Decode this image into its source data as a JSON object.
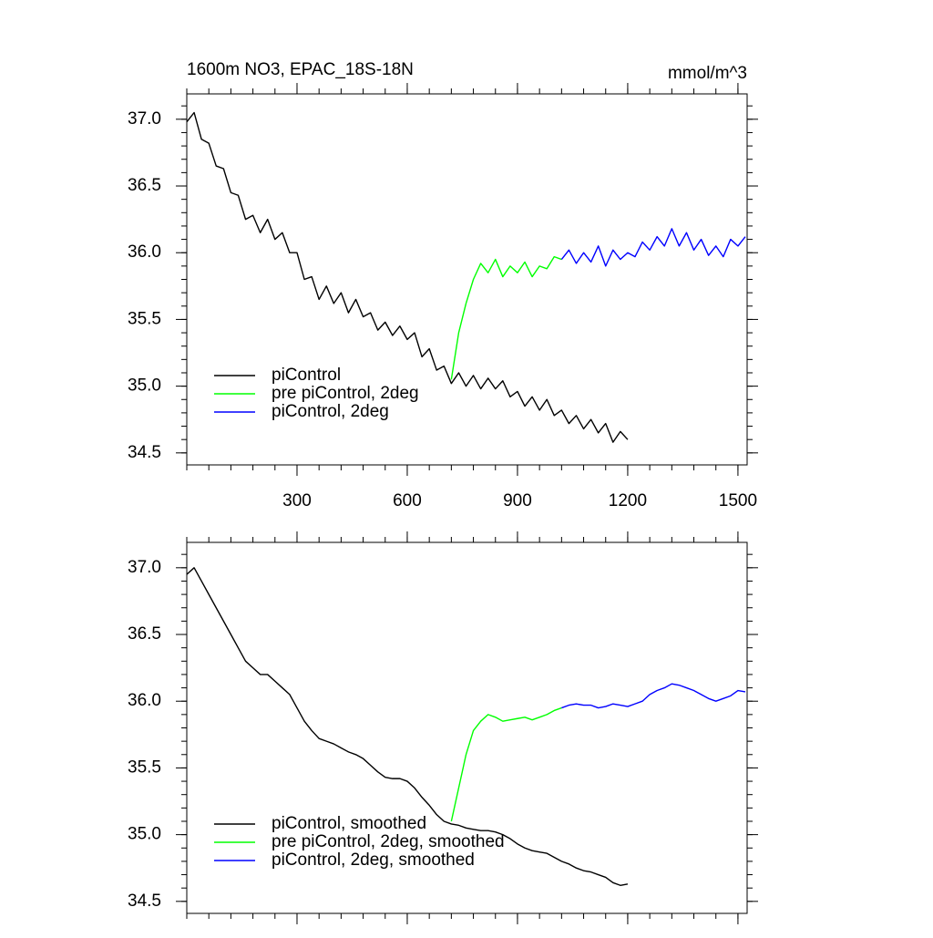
{
  "chart_data": [
    {
      "type": "line",
      "title": "1600m NO3, EPAC_18S-18N",
      "units_label": "mmol/m^3",
      "xlim": [
        0,
        1525
      ],
      "xticks": [
        300,
        600,
        900,
        1200,
        1500
      ],
      "ylim": [
        34.41,
        37.19
      ],
      "yticks": [
        {
          "value": 34.5,
          "label": "34.5"
        },
        {
          "value": 35,
          "label": "35.0"
        },
        {
          "value": 35.5,
          "label": "35.5"
        },
        {
          "value": 36,
          "label": "36.0"
        },
        {
          "value": 36.5,
          "label": "36.5"
        },
        {
          "value": 37,
          "label": "37.0"
        }
      ],
      "legend": "lower left",
      "series": [
        {
          "name": "piControl",
          "color": "#000000",
          "x": [
            0,
            20,
            40,
            60,
            80,
            100,
            120,
            140,
            160,
            180,
            200,
            220,
            240,
            260,
            280,
            300,
            320,
            340,
            360,
            380,
            400,
            420,
            440,
            460,
            480,
            500,
            520,
            540,
            560,
            580,
            600,
            620,
            640,
            660,
            680,
            700,
            720,
            740,
            760,
            780,
            800,
            820,
            840,
            860,
            880,
            900,
            920,
            940,
            960,
            980,
            1000,
            1020,
            1040,
            1060,
            1080,
            1100,
            1120,
            1140,
            1160,
            1180,
            1200
          ],
          "values": [
            36.98,
            37.05,
            36.85,
            36.82,
            36.65,
            36.63,
            36.45,
            36.43,
            36.25,
            36.28,
            36.15,
            36.25,
            36.1,
            36.15,
            36.0,
            36.0,
            35.8,
            35.82,
            35.65,
            35.75,
            35.62,
            35.7,
            35.55,
            35.65,
            35.52,
            35.55,
            35.42,
            35.48,
            35.38,
            35.45,
            35.35,
            35.4,
            35.22,
            35.28,
            35.12,
            35.15,
            35.02,
            35.1,
            35.0,
            35.08,
            34.98,
            35.06,
            34.98,
            35.04,
            34.92,
            34.96,
            34.85,
            34.92,
            34.82,
            34.9,
            34.78,
            34.82,
            34.72,
            34.78,
            34.68,
            34.75,
            34.65,
            34.72,
            34.58,
            34.66,
            34.6
          ]
        },
        {
          "name": "pre piControl, 2deg",
          "color": "#00ff00",
          "x": [
            720,
            740,
            760,
            780,
            800,
            820,
            840,
            860,
            880,
            900,
            920,
            940,
            960,
            980,
            1000,
            1020
          ],
          "values": [
            35.05,
            35.4,
            35.62,
            35.8,
            35.92,
            35.85,
            35.95,
            35.82,
            35.9,
            35.85,
            35.93,
            35.82,
            35.9,
            35.88,
            35.97,
            35.95
          ]
        },
        {
          "name": "piControl, 2deg",
          "color": "#0000ff",
          "x": [
            1020,
            1040,
            1060,
            1080,
            1100,
            1120,
            1140,
            1160,
            1180,
            1200,
            1220,
            1240,
            1260,
            1280,
            1300,
            1320,
            1340,
            1360,
            1380,
            1400,
            1420,
            1440,
            1460,
            1480,
            1500,
            1520
          ],
          "values": [
            35.95,
            36.02,
            35.92,
            36.0,
            35.93,
            36.05,
            35.9,
            36.02,
            35.95,
            36.0,
            35.97,
            36.08,
            36.02,
            36.12,
            36.05,
            36.18,
            36.05,
            36.15,
            36.02,
            36.1,
            35.98,
            36.05,
            35.97,
            36.1,
            36.05,
            36.12
          ]
        }
      ]
    },
    {
      "type": "line",
      "xlim": [
        0,
        1525
      ],
      "xticks": [
        300,
        600,
        900,
        1200,
        1500
      ],
      "ylim": [
        34.41,
        37.19
      ],
      "yticks": [
        {
          "value": 34.5,
          "label": "34.5"
        },
        {
          "value": 35,
          "label": "35.0"
        },
        {
          "value": 35.5,
          "label": "35.5"
        },
        {
          "value": 36,
          "label": "36.0"
        },
        {
          "value": 36.5,
          "label": "36.5"
        },
        {
          "value": 37,
          "label": "37.0"
        }
      ],
      "legend": "lower left",
      "series": [
        {
          "name": "piControl, smoothed",
          "color": "#000000",
          "x": [
            0,
            20,
            40,
            60,
            80,
            100,
            120,
            140,
            160,
            180,
            200,
            220,
            240,
            260,
            280,
            300,
            320,
            340,
            360,
            380,
            400,
            420,
            440,
            460,
            480,
            500,
            520,
            540,
            560,
            580,
            600,
            620,
            640,
            660,
            680,
            700,
            720,
            740,
            760,
            780,
            800,
            820,
            840,
            860,
            880,
            900,
            920,
            940,
            960,
            980,
            1000,
            1020,
            1040,
            1060,
            1080,
            1100,
            1120,
            1140,
            1160,
            1180,
            1200
          ],
          "values": [
            36.95,
            37.0,
            36.9,
            36.8,
            36.7,
            36.6,
            36.5,
            36.4,
            36.3,
            36.25,
            36.2,
            36.2,
            36.15,
            36.1,
            36.05,
            35.95,
            35.85,
            35.78,
            35.72,
            35.7,
            35.68,
            35.65,
            35.62,
            35.6,
            35.57,
            35.52,
            35.47,
            35.43,
            35.42,
            35.42,
            35.4,
            35.35,
            35.28,
            35.22,
            35.15,
            35.1,
            35.08,
            35.07,
            35.05,
            35.04,
            35.03,
            35.03,
            35.02,
            35.0,
            34.97,
            34.93,
            34.9,
            34.88,
            34.87,
            34.86,
            34.83,
            34.8,
            34.78,
            34.75,
            34.73,
            34.72,
            34.7,
            34.68,
            34.64,
            34.62,
            34.63
          ]
        },
        {
          "name": "pre piControl, 2deg, smoothed",
          "color": "#00ff00",
          "x": [
            720,
            740,
            760,
            780,
            800,
            820,
            840,
            860,
            880,
            900,
            920,
            940,
            960,
            980,
            1000,
            1020
          ],
          "values": [
            35.1,
            35.35,
            35.6,
            35.78,
            35.85,
            35.9,
            35.88,
            35.85,
            35.86,
            35.87,
            35.88,
            35.86,
            35.88,
            35.9,
            35.93,
            35.95
          ]
        },
        {
          "name": "piControl, 2deg, smoothed",
          "color": "#0000ff",
          "x": [
            1020,
            1040,
            1060,
            1080,
            1100,
            1120,
            1140,
            1160,
            1180,
            1200,
            1220,
            1240,
            1260,
            1280,
            1300,
            1320,
            1340,
            1360,
            1380,
            1400,
            1420,
            1440,
            1460,
            1480,
            1500,
            1520
          ],
          "values": [
            35.95,
            35.97,
            35.98,
            35.97,
            35.97,
            35.95,
            35.96,
            35.98,
            35.97,
            35.96,
            35.98,
            36.0,
            36.05,
            36.08,
            36.1,
            36.13,
            36.12,
            36.1,
            36.08,
            36.05,
            36.02,
            36.0,
            36.02,
            36.04,
            36.08,
            36.07
          ]
        }
      ]
    }
  ]
}
